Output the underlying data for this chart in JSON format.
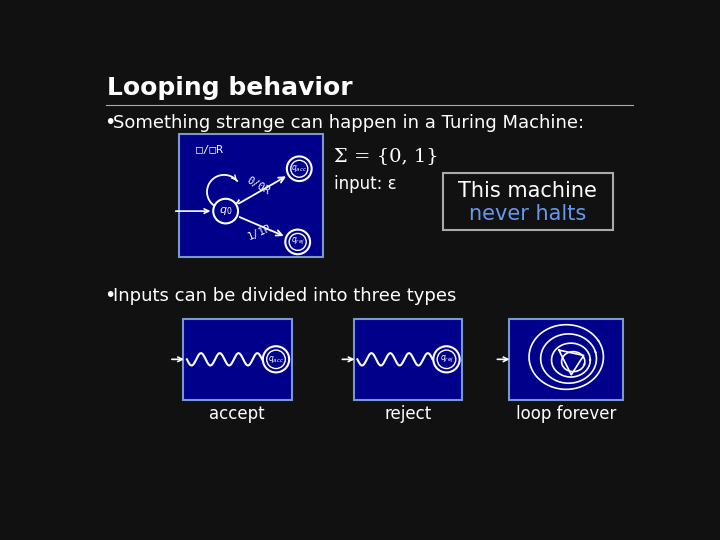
{
  "bg_color": "#111111",
  "title": "Looping behavior",
  "title_color": "#ffffff",
  "title_fontsize": 18,
  "bullet1": "Something strange can happen in a Turing Machine:",
  "bullet2": "Inputs can be divided into three types",
  "bullet_fontsize": 13,
  "sigma_text": "Σ = {0, 1}",
  "input_text": "input: ε",
  "box_bg": "#00008B",
  "box_border": "#7799cc",
  "never_halts_text1": "This machine",
  "never_halts_text2": "never halts",
  "never_halts_color": "#6699ee",
  "accept_label": "accept",
  "reject_label": "reject",
  "loop_label": "loop forever",
  "label_fontsize": 12,
  "tm_blank": "□/□R",
  "tm_01R": "0/0R",
  "tm_11R": "1/1R"
}
